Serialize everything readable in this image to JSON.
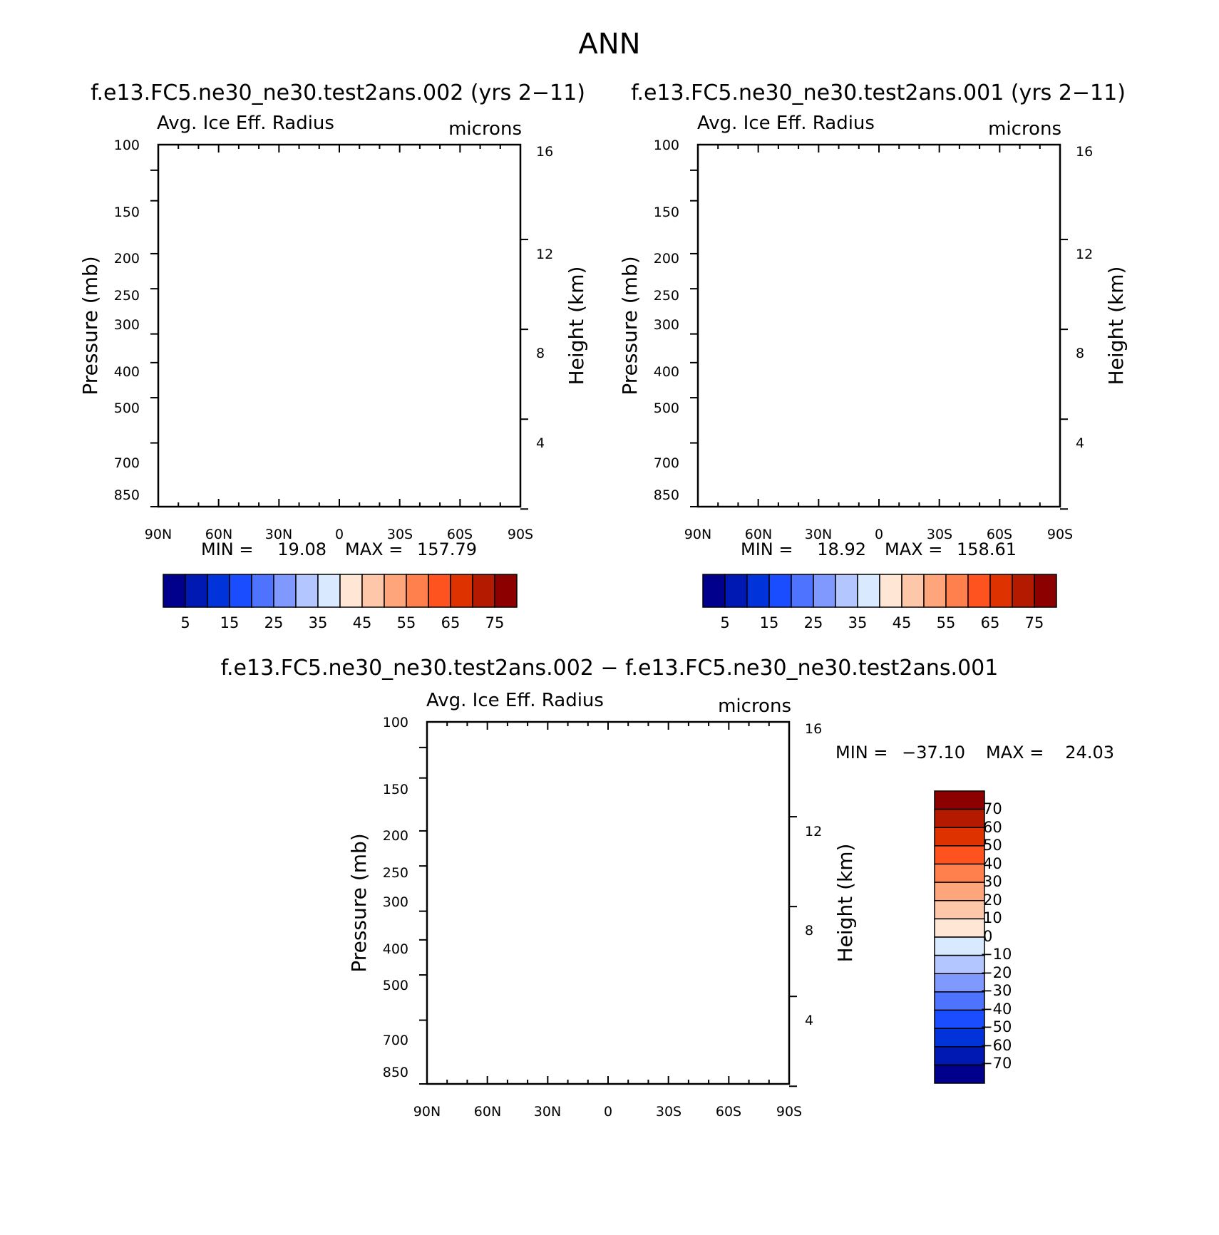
{
  "figure": {
    "title": "ANN"
  },
  "level_colors": [
    "#00008c",
    "#0019b3",
    "#0033d9",
    "#1a4dff",
    "#4d73ff",
    "#8099ff",
    "#b3c6ff",
    "#d9e9ff",
    "#ffe6d5",
    "#ffc7a9",
    "#ffa57c",
    "#ff7f4d",
    "#ff531f",
    "#de3300",
    "#b31a00",
    "#8c0000"
  ],
  "chart_data": [
    {
      "type": "heatmap",
      "title": "f.e13.FC5.ne30_ne30.test2ans.002 (yrs 2−11)",
      "subtitle_left": "Avg. Ice Eff. Radius",
      "subtitle_right": "microns",
      "xlabel": "",
      "ylabel": "Pressure (mb)",
      "ylabel_right": "Height (km)",
      "x_ticks": [
        "90N",
        "60N",
        "30N",
        "0",
        "30S",
        "60S",
        "90S"
      ],
      "y_ticks": [
        "100",
        "150",
        "200",
        "250",
        "300",
        "400",
        "500",
        "700",
        "850"
      ],
      "y_ticks_right": [
        "16",
        "12",
        "8",
        "4"
      ],
      "min_label": "MIN =",
      "min_value": "19.08",
      "max_label": "MAX =",
      "max_value": "157.79",
      "colorbar_labels": [
        "5",
        "15",
        "25",
        "35",
        "45",
        "55",
        "65",
        "75"
      ],
      "levels": [
        5,
        10,
        15,
        20,
        25,
        30,
        35,
        40,
        45,
        50,
        55,
        60,
        65,
        70,
        75
      ],
      "variant": "a"
    },
    {
      "type": "heatmap",
      "title": "f.e13.FC5.ne30_ne30.test2ans.001 (yrs 2−11)",
      "subtitle_left": "Avg. Ice Eff. Radius",
      "subtitle_right": "microns",
      "xlabel": "",
      "ylabel": "Pressure (mb)",
      "ylabel_right": "Height (km)",
      "x_ticks": [
        "90N",
        "60N",
        "30N",
        "0",
        "30S",
        "60S",
        "90S"
      ],
      "y_ticks": [
        "100",
        "150",
        "200",
        "250",
        "300",
        "400",
        "500",
        "700",
        "850"
      ],
      "y_ticks_right": [
        "16",
        "12",
        "8",
        "4"
      ],
      "min_label": "MIN =",
      "min_value": "18.92",
      "max_label": "MAX =",
      "max_value": "158.61",
      "colorbar_labels": [
        "5",
        "15",
        "25",
        "35",
        "45",
        "55",
        "65",
        "75"
      ],
      "levels": [
        5,
        10,
        15,
        20,
        25,
        30,
        35,
        40,
        45,
        50,
        55,
        60,
        65,
        70,
        75
      ],
      "variant": "b"
    },
    {
      "type": "heatmap",
      "title": "f.e13.FC5.ne30_ne30.test2ans.002 − f.e13.FC5.ne30_ne30.test2ans.001",
      "subtitle_left": "Avg. Ice Eff. Radius",
      "subtitle_right": "microns",
      "xlabel": "",
      "ylabel": "Pressure (mb)",
      "ylabel_right": "Height (km)",
      "x_ticks": [
        "90N",
        "60N",
        "30N",
        "0",
        "30S",
        "60S",
        "90S"
      ],
      "y_ticks": [
        "100",
        "150",
        "200",
        "250",
        "300",
        "400",
        "500",
        "700",
        "850"
      ],
      "y_ticks_right": [
        "16",
        "12",
        "8",
        "4"
      ],
      "min_label": "MIN =",
      "min_value": "−37.10",
      "max_label": "MAX =",
      "max_value": "24.03",
      "colorbar_labels": [
        "70",
        "60",
        "50",
        "40",
        "30",
        "20",
        "10",
        "0",
        "−10",
        "−20",
        "−30",
        "−40",
        "−50",
        "−60",
        "−70"
      ],
      "levels": [
        -70,
        -60,
        -50,
        -40,
        -30,
        -20,
        -10,
        0,
        10,
        20,
        30,
        40,
        50,
        60,
        70
      ],
      "variant": "diff"
    }
  ]
}
